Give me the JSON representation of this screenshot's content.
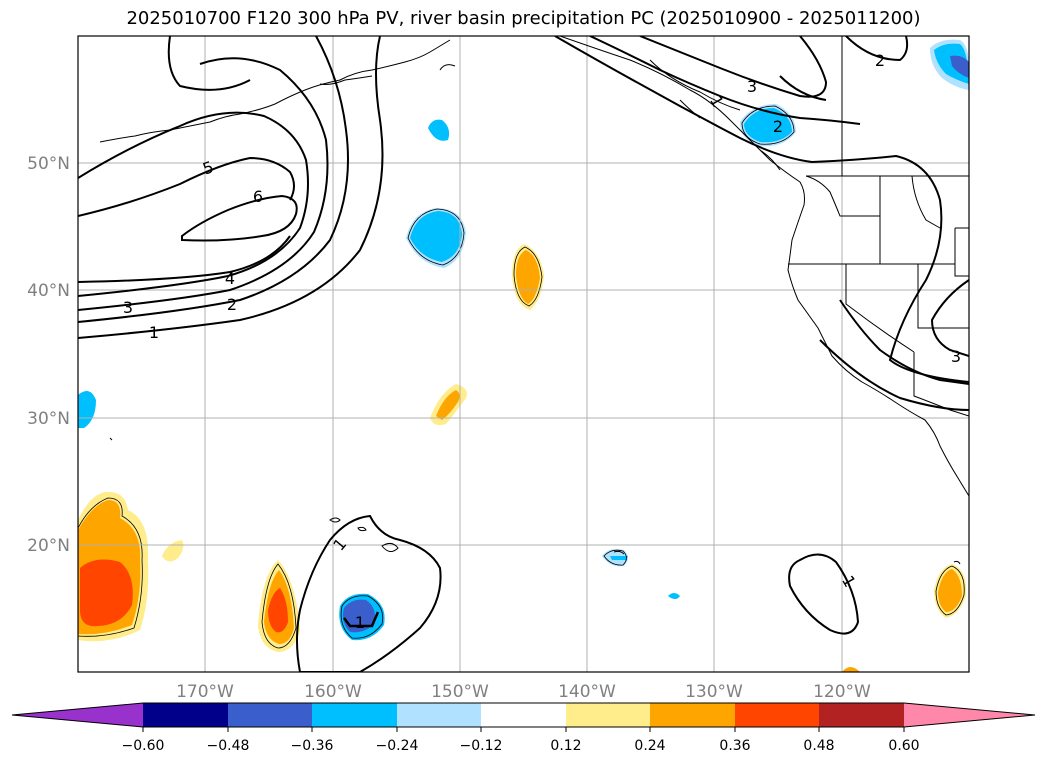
{
  "title": "2025010700 F120 300 hPa PV, river basin precipitation PC (2025010900 - 2025011200)",
  "map": {
    "lat_labels": [
      "50°N",
      "40°N",
      "30°N",
      "20°N"
    ],
    "lon_labels": [
      "170°W",
      "160°W",
      "150°W",
      "140°W",
      "130°W",
      "120°W"
    ],
    "contour_labels": [
      "5",
      "6",
      "4",
      "3",
      "2",
      "1",
      "3",
      "2",
      "2",
      "1",
      "3",
      "1",
      "1",
      "1"
    ]
  },
  "colorbar": {
    "levels": [
      "−0.60",
      "−0.48",
      "−0.36",
      "−0.24",
      "−0.12",
      "0.12",
      "0.24",
      "0.36",
      "0.48",
      "0.60"
    ],
    "colors": [
      "#9932cc",
      "#00008b",
      "#3a5fcd",
      "#00bfff",
      "#b0e2ff",
      "#ffffff",
      "#ffec8b",
      "#ffa500",
      "#ff4500",
      "#b22222",
      "#ff88aa"
    ]
  }
}
